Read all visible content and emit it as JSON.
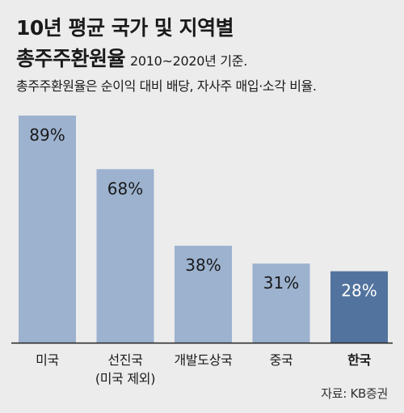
{
  "header": {
    "title_line1": "10년 평균 국가 및 지역별",
    "title_line2": "총주주환원율",
    "subtitle": "2010~2020년 기준.",
    "description": "총주주환원율은 순이익 대비 배당, 자사주 매입·소각 비율."
  },
  "chart_data": {
    "type": "bar",
    "categories": [
      [
        "미국"
      ],
      [
        "선진국",
        "(미국 제외)"
      ],
      [
        "개발도상국"
      ],
      [
        "중국"
      ],
      [
        "한국"
      ]
    ],
    "values": [
      89,
      68,
      38,
      31,
      28
    ],
    "data_labels": [
      "89%",
      "68%",
      "38%",
      "31%",
      "28%"
    ],
    "highlight_index": 4,
    "ylim": [
      0,
      89
    ],
    "grid": false,
    "legend": "none"
  },
  "colors": {
    "bar": "#9cb2cf",
    "bar_highlight": "#52739e",
    "label": "#1a1a1a",
    "label_highlight": "#ffffff",
    "baseline": "#222222",
    "background": "#ececec"
  },
  "footer": {
    "source": "자료: KB증권"
  }
}
